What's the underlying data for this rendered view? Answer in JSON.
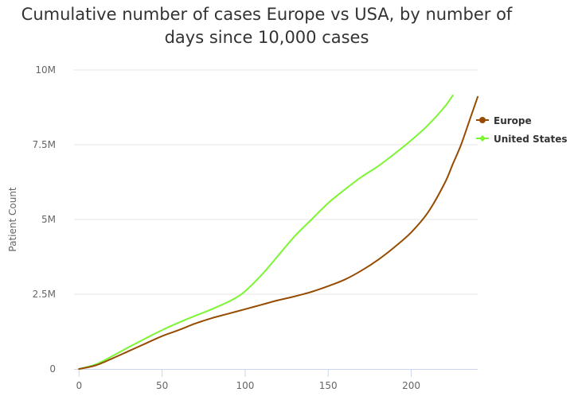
{
  "chart_data": {
    "type": "line",
    "title_lines": [
      "Cumulative number of cases Europe vs USA, by number of",
      "days since 10,000 cases"
    ],
    "xlabel": "",
    "ylabel": "Patient Count",
    "xlim": [
      -3,
      240
    ],
    "ylim": [
      0,
      10000000
    ],
    "x_ticks": [
      0,
      50,
      100,
      150,
      200
    ],
    "x_tick_labels": [
      "0",
      "50",
      "100",
      "150",
      "200"
    ],
    "y_ticks": [
      0,
      2500000,
      5000000,
      7500000,
      10000000
    ],
    "y_tick_labels": [
      "0",
      "2.5M",
      "5M",
      "7.5M",
      "10M"
    ],
    "grid": "horizontal",
    "legend_position": "right",
    "series": [
      {
        "name": "Europe",
        "color": "#964b00",
        "marker": "circle",
        "x": [
          0,
          10,
          20,
          30,
          40,
          50,
          60,
          70,
          80,
          90,
          100,
          110,
          120,
          130,
          140,
          150,
          160,
          170,
          180,
          190,
          200,
          210,
          220,
          225,
          230,
          235,
          240
        ],
        "y": [
          0,
          120000,
          350000,
          600000,
          850000,
          1100000,
          1300000,
          1520000,
          1700000,
          1850000,
          2000000,
          2150000,
          2300000,
          2430000,
          2580000,
          2770000,
          2990000,
          3290000,
          3650000,
          4080000,
          4570000,
          5230000,
          6200000,
          6850000,
          7500000,
          8300000,
          9100000
        ]
      },
      {
        "name": "United States",
        "color": "#7cf633",
        "marker": "diamond",
        "x": [
          0,
          10,
          20,
          30,
          40,
          50,
          60,
          70,
          80,
          90,
          95,
          100,
          110,
          120,
          130,
          140,
          150,
          160,
          170,
          180,
          190,
          200,
          210,
          220,
          225
        ],
        "y": [
          0,
          150000,
          430000,
          730000,
          1020000,
          1300000,
          1550000,
          1780000,
          2000000,
          2250000,
          2400000,
          2600000,
          3150000,
          3800000,
          4450000,
          5000000,
          5550000,
          6000000,
          6420000,
          6780000,
          7200000,
          7650000,
          8150000,
          8760000,
          9150000
        ]
      }
    ]
  }
}
